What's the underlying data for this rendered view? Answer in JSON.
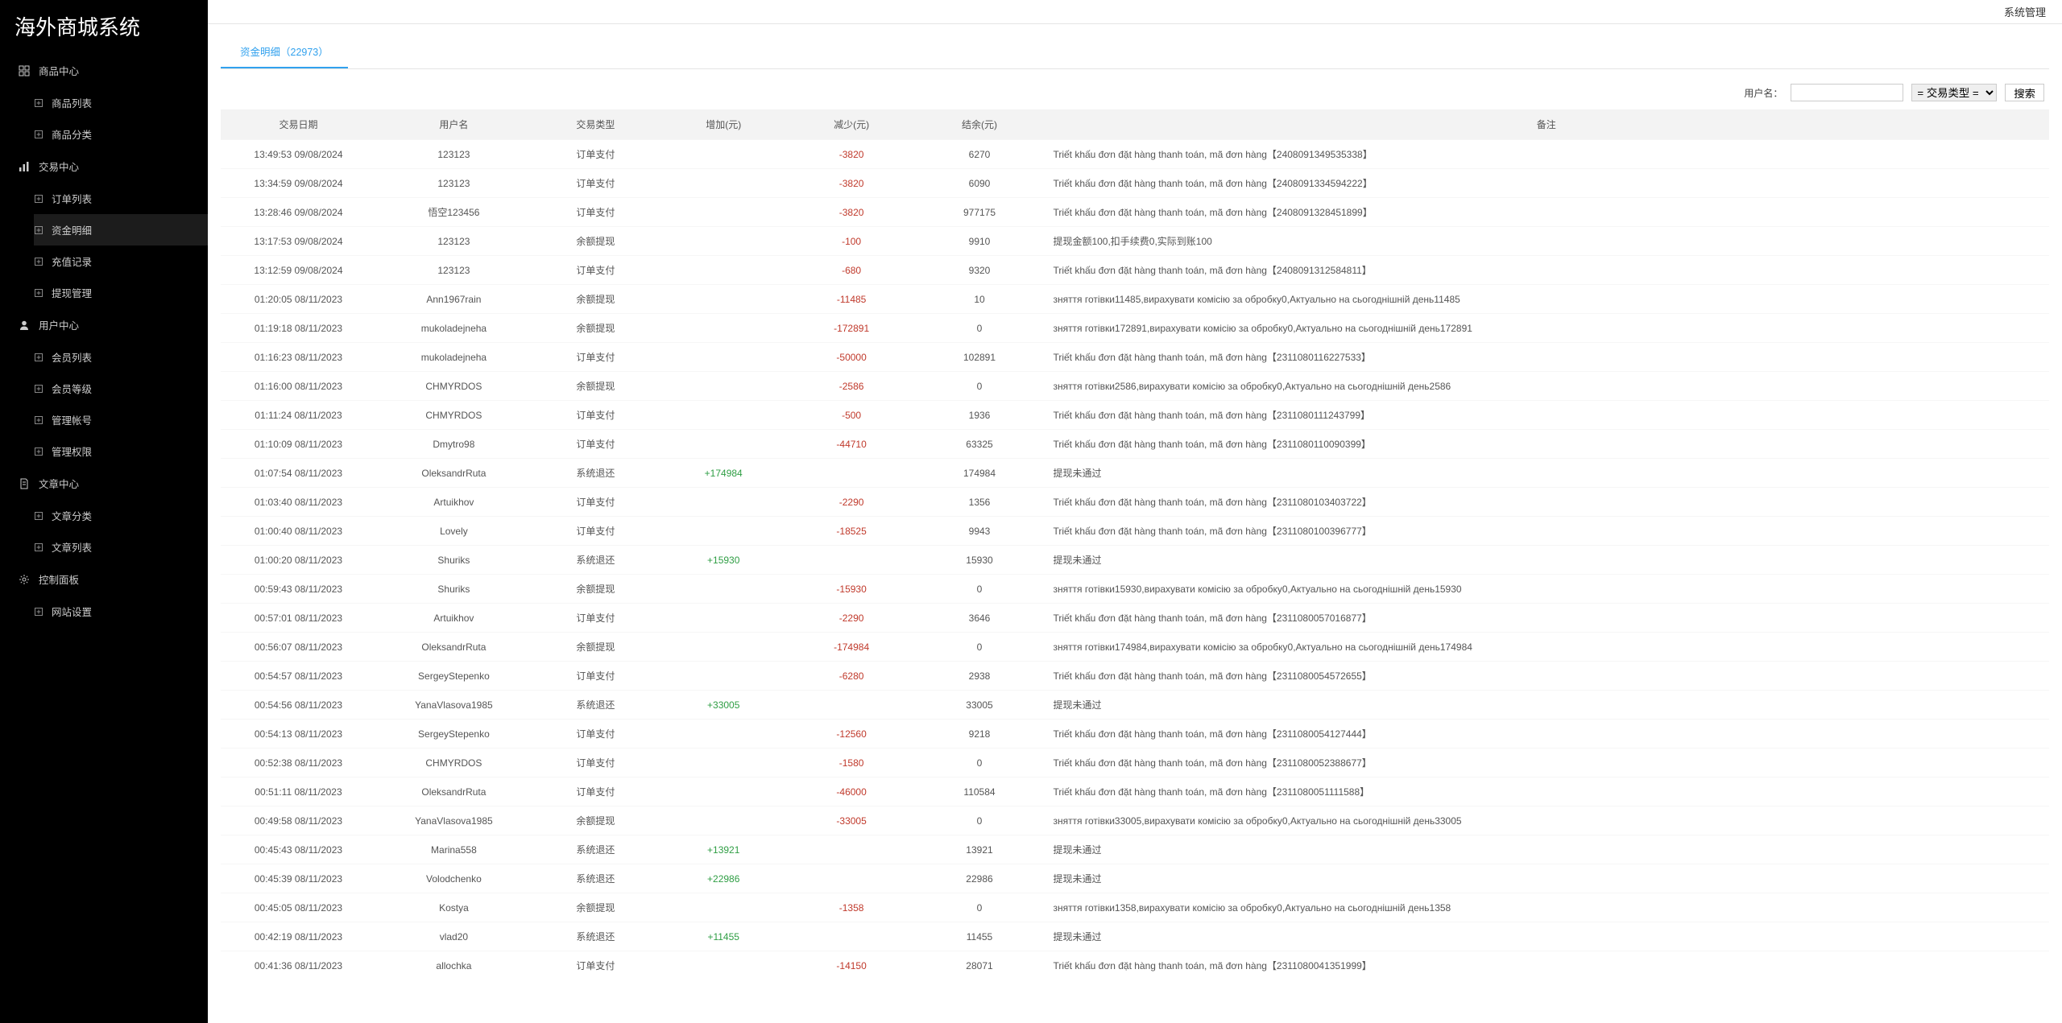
{
  "brand": "海外商城系统",
  "topbar": {
    "system_mgmt": "系统管理"
  },
  "sidebar": {
    "groups": [
      {
        "icon": "grid",
        "title": "商品中心",
        "items": [
          {
            "label": "商品列表",
            "active": false
          },
          {
            "label": "商品分类",
            "active": false
          }
        ]
      },
      {
        "icon": "bars",
        "title": "交易中心",
        "items": [
          {
            "label": "订单列表",
            "active": false
          },
          {
            "label": "资金明细",
            "active": true
          },
          {
            "label": "充值记录",
            "active": false
          },
          {
            "label": "提现管理",
            "active": false
          }
        ]
      },
      {
        "icon": "person",
        "title": "用户中心",
        "items": [
          {
            "label": "会员列表",
            "active": false
          },
          {
            "label": "会员等级",
            "active": false
          },
          {
            "label": "管理帐号",
            "active": false
          },
          {
            "label": "管理权限",
            "active": false
          }
        ]
      },
      {
        "icon": "doc",
        "title": "文章中心",
        "items": [
          {
            "label": "文章分类",
            "active": false
          },
          {
            "label": "文章列表",
            "active": false
          }
        ]
      },
      {
        "icon": "gear",
        "title": "控制面板",
        "items": [
          {
            "label": "网站设置",
            "active": false
          }
        ]
      }
    ]
  },
  "tab": {
    "label": "资金明细（22973）"
  },
  "filters": {
    "username_label": "用户名：",
    "type_select_placeholder": "= 交易类型 =",
    "search_label": "搜索"
  },
  "table": {
    "columns": [
      "交易日期",
      "用户名",
      "交易类型",
      "增加(元)",
      "减少(元)",
      "结余(元)",
      "备注"
    ],
    "col_widths": [
      "8.5%",
      "8.5%",
      "7%",
      "7%",
      "7%",
      "7%",
      "55%"
    ],
    "rows": [
      {
        "date": "13:49:53 09/08/2024",
        "user": "123123",
        "type": "订单支付",
        "inc": "",
        "dec": "-3820",
        "bal": "6270",
        "remark": "Triết khấu đơn đặt hàng thanh toán, mã đơn hàng【2408091349535338】"
      },
      {
        "date": "13:34:59 09/08/2024",
        "user": "123123",
        "type": "订单支付",
        "inc": "",
        "dec": "-3820",
        "bal": "6090",
        "remark": "Triết khấu đơn đặt hàng thanh toán, mã đơn hàng【2408091334594222】"
      },
      {
        "date": "13:28:46 09/08/2024",
        "user": "悟空123456",
        "type": "订单支付",
        "inc": "",
        "dec": "-3820",
        "bal": "977175",
        "remark": "Triết khấu đơn đặt hàng thanh toán, mã đơn hàng【2408091328451899】"
      },
      {
        "date": "13:17:53 09/08/2024",
        "user": "123123",
        "type": "余额提现",
        "inc": "",
        "dec": "-100",
        "bal": "9910",
        "remark": "提现金额100,扣手续费0,实际到账100"
      },
      {
        "date": "13:12:59 09/08/2024",
        "user": "123123",
        "type": "订单支付",
        "inc": "",
        "dec": "-680",
        "bal": "9320",
        "remark": "Triết khấu đơn đặt hàng thanh toán, mã đơn hàng【2408091312584811】"
      },
      {
        "date": "01:20:05 08/11/2023",
        "user": "Ann1967rain",
        "type": "余额提现",
        "inc": "",
        "dec": "-11485",
        "bal": "10",
        "remark": "зняття готівки11485,вирахувати комісію за обробку0,Актуально на сьогоднішній день11485"
      },
      {
        "date": "01:19:18 08/11/2023",
        "user": "mukoladejneha",
        "type": "余额提现",
        "inc": "",
        "dec": "-172891",
        "bal": "0",
        "remark": "зняття готівки172891,вирахувати комісію за обробку0,Актуально на сьогоднішній день172891"
      },
      {
        "date": "01:16:23 08/11/2023",
        "user": "mukoladejneha",
        "type": "订单支付",
        "inc": "",
        "dec": "-50000",
        "bal": "102891",
        "remark": "Triết khấu đơn đặt hàng thanh toán, mã đơn hàng【2311080116227533】"
      },
      {
        "date": "01:16:00 08/11/2023",
        "user": "CHMYRDOS",
        "type": "余额提现",
        "inc": "",
        "dec": "-2586",
        "bal": "0",
        "remark": "зняття готівки2586,вирахувати комісію за обробку0,Актуально на сьогоднішній день2586"
      },
      {
        "date": "01:11:24 08/11/2023",
        "user": "CHMYRDOS",
        "type": "订单支付",
        "inc": "",
        "dec": "-500",
        "bal": "1936",
        "remark": "Triết khấu đơn đặt hàng thanh toán, mã đơn hàng【2311080111243799】"
      },
      {
        "date": "01:10:09 08/11/2023",
        "user": "Dmytro98",
        "type": "订单支付",
        "inc": "",
        "dec": "-44710",
        "bal": "63325",
        "remark": "Triết khấu đơn đặt hàng thanh toán, mã đơn hàng【2311080110090399】"
      },
      {
        "date": "01:07:54 08/11/2023",
        "user": "OleksandrRuta",
        "type": "系统退还",
        "inc": "+174984",
        "dec": "",
        "bal": "174984",
        "remark": "提现未通过"
      },
      {
        "date": "01:03:40 08/11/2023",
        "user": "Artuikhov",
        "type": "订单支付",
        "inc": "",
        "dec": "-2290",
        "bal": "1356",
        "remark": "Triết khấu đơn đặt hàng thanh toán, mã đơn hàng【2311080103403722】"
      },
      {
        "date": "01:00:40 08/11/2023",
        "user": "Lovely",
        "type": "订单支付",
        "inc": "",
        "dec": "-18525",
        "bal": "9943",
        "remark": "Triết khấu đơn đặt hàng thanh toán, mã đơn hàng【2311080100396777】"
      },
      {
        "date": "01:00:20 08/11/2023",
        "user": "Shuriks",
        "type": "系统退还",
        "inc": "+15930",
        "dec": "",
        "bal": "15930",
        "remark": "提现未通过"
      },
      {
        "date": "00:59:43 08/11/2023",
        "user": "Shuriks",
        "type": "余额提现",
        "inc": "",
        "dec": "-15930",
        "bal": "0",
        "remark": "зняття готівки15930,вирахувати комісію за обробку0,Актуально на сьогоднішній день15930"
      },
      {
        "date": "00:57:01 08/11/2023",
        "user": "Artuikhov",
        "type": "订单支付",
        "inc": "",
        "dec": "-2290",
        "bal": "3646",
        "remark": "Triết khấu đơn đặt hàng thanh toán, mã đơn hàng【2311080057016877】"
      },
      {
        "date": "00:56:07 08/11/2023",
        "user": "OleksandrRuta",
        "type": "余额提现",
        "inc": "",
        "dec": "-174984",
        "bal": "0",
        "remark": "зняття готівки174984,вирахувати комісію за обробку0,Актуально на сьогоднішній день174984"
      },
      {
        "date": "00:54:57 08/11/2023",
        "user": "SergeyStepenko",
        "type": "订单支付",
        "inc": "",
        "dec": "-6280",
        "bal": "2938",
        "remark": "Triết khấu đơn đặt hàng thanh toán, mã đơn hàng【2311080054572655】"
      },
      {
        "date": "00:54:56 08/11/2023",
        "user": "YanaVlasova1985",
        "type": "系统退还",
        "inc": "+33005",
        "dec": "",
        "bal": "33005",
        "remark": "提现未通过"
      },
      {
        "date": "00:54:13 08/11/2023",
        "user": "SergeyStepenko",
        "type": "订单支付",
        "inc": "",
        "dec": "-12560",
        "bal": "9218",
        "remark": "Triết khấu đơn đặt hàng thanh toán, mã đơn hàng【2311080054127444】"
      },
      {
        "date": "00:52:38 08/11/2023",
        "user": "CHMYRDOS",
        "type": "订单支付",
        "inc": "",
        "dec": "-1580",
        "bal": "0",
        "remark": "Triết khấu đơn đặt hàng thanh toán, mã đơn hàng【2311080052388677】"
      },
      {
        "date": "00:51:11 08/11/2023",
        "user": "OleksandrRuta",
        "type": "订单支付",
        "inc": "",
        "dec": "-46000",
        "bal": "110584",
        "remark": "Triết khấu đơn đặt hàng thanh toán, mã đơn hàng【2311080051111588】"
      },
      {
        "date": "00:49:58 08/11/2023",
        "user": "YanaVlasova1985",
        "type": "余额提现",
        "inc": "",
        "dec": "-33005",
        "bal": "0",
        "remark": "зняття готівки33005,вирахувати комісію за обробку0,Актуально на сьогоднішній день33005"
      },
      {
        "date": "00:45:43 08/11/2023",
        "user": "Marina558",
        "type": "系统退还",
        "inc": "+13921",
        "dec": "",
        "bal": "13921",
        "remark": "提现未通过"
      },
      {
        "date": "00:45:39 08/11/2023",
        "user": "Volodchenko",
        "type": "系统退还",
        "inc": "+22986",
        "dec": "",
        "bal": "22986",
        "remark": "提现未通过"
      },
      {
        "date": "00:45:05 08/11/2023",
        "user": "Kostya",
        "type": "余额提现",
        "inc": "",
        "dec": "-1358",
        "bal": "0",
        "remark": "зняття готівки1358,вирахувати комісію за обробку0,Актуально на сьогоднішній день1358"
      },
      {
        "date": "00:42:19 08/11/2023",
        "user": "vlad20",
        "type": "系统退还",
        "inc": "+11455",
        "dec": "",
        "bal": "11455",
        "remark": "提现未通过"
      },
      {
        "date": "00:41:36 08/11/2023",
        "user": "allochka",
        "type": "订单支付",
        "inc": "",
        "dec": "-14150",
        "bal": "28071",
        "remark": "Triết khấu đơn đặt hàng thanh toán, mã đơn hàng【2311080041351999】"
      }
    ]
  },
  "colors": {
    "neg": "#c0392b",
    "pos": "#2f9e44",
    "tab_active": "#31a1ee",
    "sidebar_bg": "#000000"
  }
}
